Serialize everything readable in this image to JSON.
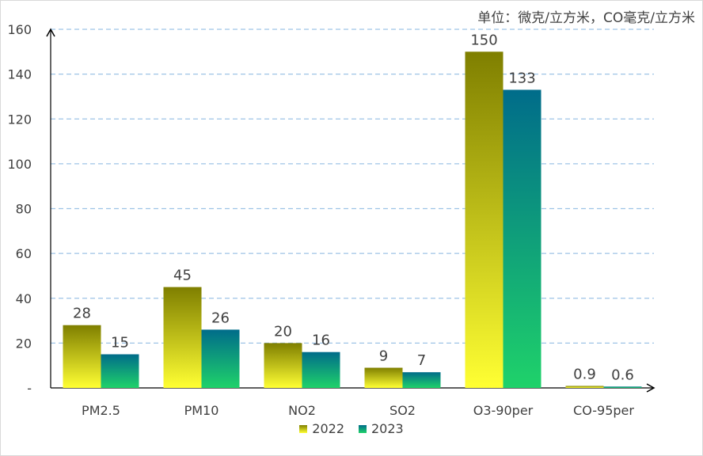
{
  "unit_note": "单位：微克/立方米，CO毫克/立方米",
  "chart_data": {
    "type": "bar",
    "categories": [
      "PM2.5",
      "PM10",
      "NO2",
      "SO2",
      "O3-90per",
      "CO-95per"
    ],
    "series": [
      {
        "name": "2022",
        "values": [
          28,
          45,
          20,
          9,
          150,
          0.9
        ],
        "labels": [
          "28",
          "45",
          "20",
          "9",
          "150",
          "0.9"
        ],
        "colors": [
          "#7f7f00",
          "#ffff33"
        ]
      },
      {
        "name": "2023",
        "values": [
          15,
          26,
          16,
          7,
          133,
          0.6
        ],
        "labels": [
          "15",
          "26",
          "16",
          "7",
          "133",
          "0.6"
        ],
        "colors": [
          "#006c8a",
          "#1fd26a"
        ]
      }
    ],
    "y_ticks": [
      "-",
      "20",
      "40",
      "60",
      "80",
      "100",
      "120",
      "140",
      "160"
    ],
    "ylim": [
      0,
      160
    ],
    "grid": true,
    "legend_position": "bottom"
  }
}
